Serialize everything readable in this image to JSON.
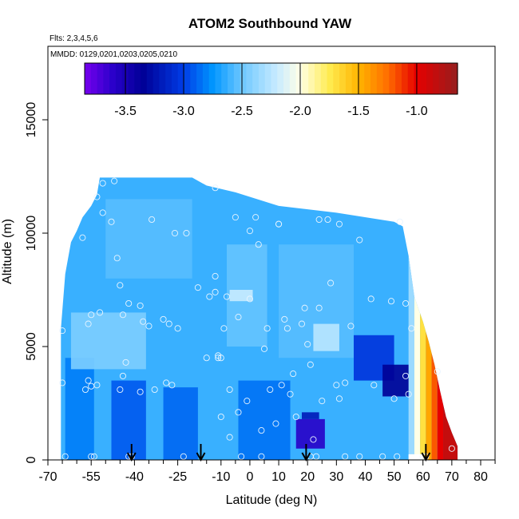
{
  "chart_data": {
    "type": "heatmap",
    "title": "ATOM2 Southbound YAW",
    "subtitle_flights": "Flts: 2,3,4,5,6",
    "subtitle_dates": "MMDD: 0129,0201,0203,0205,0210",
    "xlabel": "Latitude (deg N)",
    "ylabel": "Altitude (m)",
    "xlim": [
      -70,
      85
    ],
    "ylim": [
      0,
      17500
    ],
    "x_ticks": [
      -70,
      -55,
      -40,
      -25,
      -10,
      0,
      10,
      20,
      30,
      40,
      50,
      60,
      70,
      80
    ],
    "x_tick_labels": [
      "-70",
      "-55",
      "-40",
      "-25",
      "-10",
      "0",
      "10",
      "20",
      "30",
      "40",
      "50",
      "60",
      "70",
      "80"
    ],
    "x_minor_ticks": [
      -65,
      -60,
      -50,
      -45,
      -35,
      -30,
      -20,
      -15,
      -5,
      5,
      15,
      25,
      35,
      45,
      55,
      65,
      75,
      85
    ],
    "y_ticks": [
      0,
      5000,
      10000,
      15000
    ],
    "y_tick_labels": [
      "0",
      "5000",
      "10000",
      "15000"
    ],
    "colorbar": {
      "range": [
        -3.85,
        -0.65
      ],
      "ticks": [
        -3.5,
        -3.0,
        -2.5,
        -2.0,
        -1.5,
        -1.0
      ],
      "tick_labels": [
        "-3.5",
        "-3.0",
        "-2.5",
        "-2.0",
        "-1.5",
        "-1.0"
      ]
    },
    "arrows_lat": [
      -41,
      -17,
      19.5,
      61
    ],
    "envelope": [
      {
        "lat": -65.5,
        "top": 5800
      },
      {
        "lat": -64,
        "top": 8200
      },
      {
        "lat": -62,
        "top": 9600
      },
      {
        "lat": -60,
        "top": 10100
      },
      {
        "lat": -58,
        "top": 10700
      },
      {
        "lat": -55,
        "top": 11200
      },
      {
        "lat": -53,
        "top": 11700
      },
      {
        "lat": -52,
        "top": 12450
      },
      {
        "lat": -20,
        "top": 12450
      },
      {
        "lat": -15,
        "top": 12100
      },
      {
        "lat": -5,
        "top": 11800
      },
      {
        "lat": 10,
        "top": 11200
      },
      {
        "lat": 30,
        "top": 10900
      },
      {
        "lat": 50,
        "top": 10500
      },
      {
        "lat": 53,
        "top": 10300
      },
      {
        "lat": 55,
        "top": 9000
      },
      {
        "lat": 57,
        "top": 7200
      },
      {
        "lat": 60,
        "top": 6100
      },
      {
        "lat": 62,
        "top": 5200
      },
      {
        "lat": 64,
        "top": 4200
      },
      {
        "lat": 66,
        "top": 3000
      },
      {
        "lat": 68,
        "top": 1900
      },
      {
        "lat": 70,
        "top": 1200
      },
      {
        "lat": 72,
        "top": 600
      }
    ],
    "background_value": -2.62,
    "patches": [
      {
        "lat": [
          -64,
          -54
        ],
        "alt": [
          0,
          4500
        ],
        "value": -2.82
      },
      {
        "lat": [
          -48,
          -36
        ],
        "alt": [
          0,
          3500
        ],
        "value": -2.92
      },
      {
        "lat": [
          -30,
          -18
        ],
        "alt": [
          0,
          3200
        ],
        "value": -2.88
      },
      {
        "lat": [
          -4,
          14
        ],
        "alt": [
          0,
          3500
        ],
        "value": -2.85
      },
      {
        "lat": [
          -8,
          6
        ],
        "alt": [
          5000,
          9500
        ],
        "value": -2.52
      },
      {
        "lat": [
          -62,
          -36
        ],
        "alt": [
          4000,
          6500
        ],
        "value": -2.45
      },
      {
        "lat": [
          -50,
          -20
        ],
        "alt": [
          8000,
          11500
        ],
        "value": -2.55
      },
      {
        "lat": [
          10,
          36
        ],
        "alt": [
          4500,
          9500
        ],
        "value": -2.55
      },
      {
        "lat": [
          36,
          50
        ],
        "alt": [
          3500,
          5500
        ],
        "value": -3.05
      },
      {
        "lat": [
          46,
          56
        ],
        "alt": [
          2800,
          4200
        ],
        "value": -3.35
      },
      {
        "lat": [
          16,
          26
        ],
        "alt": [
          500,
          1800
        ],
        "value": -3.6
      },
      {
        "lat": [
          18,
          24
        ],
        "alt": [
          1800,
          2100
        ],
        "value": -3.2
      },
      {
        "lat": [
          22,
          31
        ],
        "alt": [
          4800,
          6000
        ],
        "value": -2.25
      },
      {
        "lat": [
          -7,
          1
        ],
        "alt": [
          7000,
          7500
        ],
        "value": -2.2
      }
    ],
    "gradient_columns": [
      {
        "lat": [
          55,
          57
        ],
        "value": -2.35
      },
      {
        "lat": [
          57,
          59
        ],
        "value": -2.0
      },
      {
        "lat": [
          59,
          61
        ],
        "value": -1.7
      },
      {
        "lat": [
          61,
          63
        ],
        "value": -1.45
      },
      {
        "lat": [
          63,
          65
        ],
        "value": -1.2
      },
      {
        "lat": [
          65,
          67
        ],
        "value": -1.0
      },
      {
        "lat": [
          67,
          72
        ],
        "value": -0.85
      }
    ],
    "white_gap": {
      "lat": [
        55,
        60
      ],
      "alt": [
        0,
        250
      ]
    },
    "sample_points": [
      [
        -65,
        3400
      ],
      [
        -65,
        5700
      ],
      [
        -64,
        150
      ],
      [
        -57,
        3100
      ],
      [
        -56,
        3500
      ],
      [
        -55,
        3250
      ],
      [
        -55,
        150
      ],
      [
        -54,
        150
      ],
      [
        -53,
        3300
      ],
      [
        -56,
        6000
      ],
      [
        -55,
        6400
      ],
      [
        -52,
        6500
      ],
      [
        -51,
        10900
      ],
      [
        -58,
        9800
      ],
      [
        -53,
        11600
      ],
      [
        -51,
        12200
      ],
      [
        -47,
        12300
      ],
      [
        -48,
        10500
      ],
      [
        -46,
        8900
      ],
      [
        -45,
        7700
      ],
      [
        -44,
        6400
      ],
      [
        -42,
        6900
      ],
      [
        -43,
        4300
      ],
      [
        -44,
        3700
      ],
      [
        -45,
        3100
      ],
      [
        -42,
        150
      ],
      [
        -41,
        150
      ],
      [
        -38,
        3000
      ],
      [
        -38,
        6800
      ],
      [
        -37,
        6100
      ],
      [
        -35,
        5900
      ],
      [
        -34,
        10600
      ],
      [
        -33,
        3100
      ],
      [
        -30,
        6200
      ],
      [
        -29,
        3400
      ],
      [
        -28,
        6000
      ],
      [
        -27,
        3300
      ],
      [
        -26,
        10000
      ],
      [
        -25,
        5800
      ],
      [
        -23,
        150
      ],
      [
        -22,
        10000
      ],
      [
        -18,
        7600
      ],
      [
        -15,
        4500
      ],
      [
        -14,
        7200
      ],
      [
        -12,
        12000
      ],
      [
        -12,
        8100
      ],
      [
        -12,
        7400
      ],
      [
        -11,
        4600
      ],
      [
        -11,
        4500
      ],
      [
        -10,
        4500
      ],
      [
        -10,
        1900
      ],
      [
        -9,
        5800
      ],
      [
        -8,
        7200
      ],
      [
        -7,
        3100
      ],
      [
        -7,
        1000
      ],
      [
        -5,
        10700
      ],
      [
        -4,
        6300
      ],
      [
        -4,
        2100
      ],
      [
        -3,
        150
      ],
      [
        -1,
        2600
      ],
      [
        0,
        7100
      ],
      [
        0,
        10100
      ],
      [
        2,
        10700
      ],
      [
        3,
        9500
      ],
      [
        4,
        150
      ],
      [
        4,
        1300
      ],
      [
        5,
        4900
      ],
      [
        6,
        5800
      ],
      [
        7,
        3100
      ],
      [
        9,
        1600
      ],
      [
        10,
        10400
      ],
      [
        10,
        10400
      ],
      [
        11,
        3300
      ],
      [
        12,
        6200
      ],
      [
        13,
        5800
      ],
      [
        14,
        2900
      ],
      [
        15,
        3800
      ],
      [
        16,
        1900
      ],
      [
        18,
        6000
      ],
      [
        19,
        6700
      ],
      [
        20,
        5100
      ],
      [
        21,
        150
      ],
      [
        21,
        4200
      ],
      [
        22,
        900
      ],
      [
        23,
        150
      ],
      [
        24,
        6700
      ],
      [
        24,
        10600
      ],
      [
        25,
        2600
      ],
      [
        27,
        10600
      ],
      [
        28,
        7800
      ],
      [
        30,
        3300
      ],
      [
        31,
        10400
      ],
      [
        31,
        2700
      ],
      [
        33,
        3400
      ],
      [
        33,
        150
      ],
      [
        35,
        5900
      ],
      [
        38,
        150
      ],
      [
        38,
        9700
      ],
      [
        42,
        7100
      ],
      [
        43,
        3300
      ],
      [
        46,
        150
      ],
      [
        49,
        7000
      ],
      [
        50,
        2700
      ],
      [
        51,
        150
      ],
      [
        52,
        10500
      ],
      [
        54,
        3700
      ],
      [
        54,
        6900
      ],
      [
        55,
        2900
      ],
      [
        56,
        5800
      ],
      [
        60,
        150
      ],
      [
        61,
        150
      ],
      [
        65,
        3900
      ],
      [
        70,
        500
      ]
    ]
  }
}
